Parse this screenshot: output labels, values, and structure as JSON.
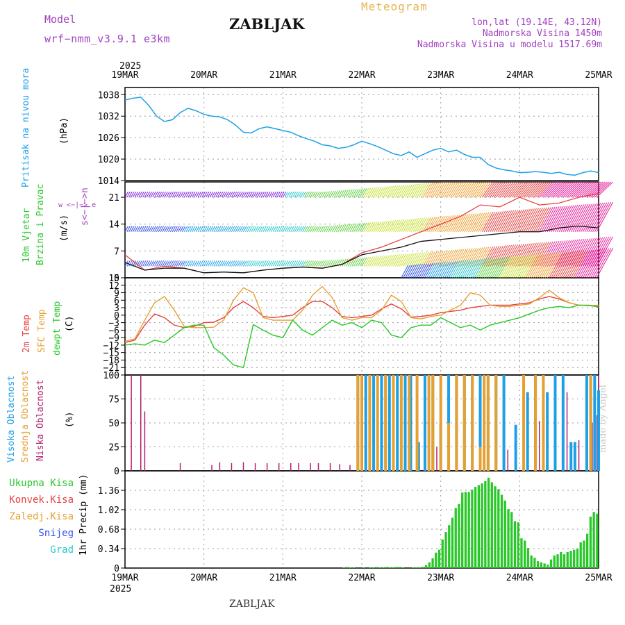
{
  "header": {
    "model_label": "Model",
    "model_name": "wrf−nmm_v3.9.1  e3km",
    "station": "ZABLJAK",
    "product": "Meteogram",
    "coords": "lon,lat (19.14E, 43.12N)",
    "altitude": "Nadmorska Visina 1450m",
    "model_altitude": "Nadmorska Visina u modelu 1517.69m"
  },
  "footer": {
    "station": "ZABLJAK",
    "credit": "made by Angel"
  },
  "colors": {
    "pressure": "#1ea0e6",
    "temp2m": "#e64040",
    "sfc_temp": "#e6a030",
    "dewpoint": "#28c828",
    "high_cloud": "#1ea0e6",
    "mid_cloud": "#e6a030",
    "low_cloud": "#b0206e",
    "precip": "#28c828",
    "purple": "#a040c0"
  },
  "chart_data": [
    {
      "id": "pressure",
      "type": "line",
      "ylabel": "(hPa)",
      "side_label": "Pritisak na nivou mora",
      "ylim": [
        1014,
        1040
      ],
      "yticks": [
        1014,
        1020,
        1026,
        1032,
        1038
      ],
      "x_days": [
        0,
        0.1,
        0.2,
        0.3,
        0.4,
        0.5,
        0.6,
        0.7,
        0.8,
        0.9,
        1.0,
        1.1,
        1.2,
        1.3,
        1.4,
        1.5,
        1.6,
        1.7,
        1.8,
        1.9,
        2.0,
        2.1,
        2.2,
        2.3,
        2.4,
        2.5,
        2.6,
        2.7,
        2.8,
        2.9,
        3.0,
        3.1,
        3.2,
        3.3,
        3.4,
        3.5,
        3.6,
        3.7,
        3.8,
        3.9,
        4.0,
        4.1,
        4.2,
        4.3,
        4.4,
        4.5,
        4.6,
        4.7,
        4.8,
        4.9,
        5.0,
        5.1,
        5.2,
        5.3,
        5.4,
        5.5,
        5.6,
        5.7,
        5.8,
        5.9,
        6.0
      ],
      "values": [
        1036.5,
        1037,
        1037.3,
        1035,
        1032,
        1030.5,
        1031,
        1033,
        1034.2,
        1033.5,
        1032.5,
        1032,
        1031.8,
        1031,
        1029.5,
        1027.5,
        1027.3,
        1028.5,
        1029,
        1028.5,
        1028,
        1027.5,
        1026.5,
        1025.7,
        1025,
        1024,
        1023.7,
        1023,
        1023.3,
        1024,
        1025,
        1024.3,
        1023.5,
        1022.5,
        1021.5,
        1021,
        1022,
        1020.5,
        1021.5,
        1022.5,
        1023,
        1022,
        1022.5,
        1021.3,
        1020.5,
        1020.5,
        1018.5,
        1017.5,
        1017,
        1016.7,
        1016.2,
        1016.3,
        1016.5,
        1016.3,
        1016,
        1016.3,
        1015.7,
        1015.5,
        1016.2,
        1016.7,
        1016.2
      ]
    },
    {
      "id": "wind",
      "type": "line",
      "ylabel": "(m/s)",
      "side_label_1": "10m Vjetar",
      "side_label_2": "Brzina i Pravac",
      "legend_compass": "w <−|−> e",
      "legend_ns": "s<−|−>n",
      "ylim": [
        0,
        25
      ],
      "yticks": [
        0,
        7,
        14,
        21
      ],
      "x_days": [
        0,
        0.25,
        0.5,
        0.75,
        1.0,
        1.25,
        1.5,
        1.75,
        2.0,
        2.25,
        2.5,
        2.75,
        3.0,
        3.25,
        3.5,
        3.75,
        4.0,
        4.25,
        4.5,
        4.75,
        5.0,
        5.25,
        5.5,
        5.75,
        6.0
      ],
      "series": [
        {
          "name": "10m wind speed",
          "color": "#e64040",
          "values": [
            6,
            2,
            3,
            2.5,
            1.3,
            1.5,
            1.3,
            2,
            2.5,
            2.8,
            2.5,
            3.5,
            6.5,
            8,
            10,
            12,
            14,
            16,
            19,
            18.5,
            21,
            19,
            19.5,
            21,
            22
          ]
        },
        {
          "name": "gust",
          "color": "#111111",
          "values": [
            4,
            2,
            2.5,
            2.5,
            1.3,
            1.5,
            1.3,
            2,
            2.5,
            2.8,
            2.5,
            3.5,
            6,
            7,
            8,
            9.5,
            10,
            10.5,
            11,
            11.5,
            12,
            12,
            13,
            13.5,
            13
          ]
        }
      ],
      "barb_rows": [
        {
          "level_ms": 3,
          "color_from": "#3050e6",
          "color_to": "#e61e9a",
          "start_day": 0,
          "end_day": 6
        },
        {
          "level_ms": 12,
          "color_from": "#3050e6",
          "color_to": "#e61e9a",
          "start_day": 0,
          "end_day": 6
        },
        {
          "level_ms": 21,
          "color_from": "#8020e0",
          "color_to": "#e61e9a",
          "start_day": 0,
          "end_day": 6
        },
        {
          "level_ms": 0,
          "color_from": "#60d040",
          "color_to": "#e61e9a",
          "start_day": 3.5,
          "end_day": 6
        }
      ]
    },
    {
      "id": "temperature",
      "type": "line",
      "ylabel": "(C)",
      "side_label_1": "2m Temp",
      "side_label_2": "SFC Temp",
      "side_label_3": "dewpt Temp",
      "ylim": [
        -24,
        15
      ],
      "yticks": [
        15,
        12,
        9,
        6,
        3,
        0,
        -3,
        -6,
        -9,
        -12,
        -15,
        -18,
        -21
      ],
      "x_days": [
        0,
        0.125,
        0.25,
        0.375,
        0.5,
        0.625,
        0.75,
        0.875,
        1.0,
        1.125,
        1.25,
        1.375,
        1.5,
        1.625,
        1.75,
        1.875,
        2.0,
        2.125,
        2.25,
        2.375,
        2.5,
        2.625,
        2.75,
        2.875,
        3.0,
        3.125,
        3.25,
        3.375,
        3.5,
        3.625,
        3.75,
        3.875,
        4.0,
        4.125,
        4.25,
        4.375,
        4.5,
        4.625,
        4.75,
        4.875,
        5.0,
        5.125,
        5.25,
        5.375,
        5.5,
        5.625,
        5.75,
        5.875,
        6.0
      ],
      "series": [
        {
          "name": "2m Temp",
          "color": "#e64040",
          "values": [
            -11,
            -10,
            -4,
            0.5,
            -1,
            -4,
            -5,
            -4.5,
            -3,
            -2.8,
            -1,
            3,
            5.5,
            3,
            -0.5,
            -1,
            -0.5,
            0,
            3,
            5.5,
            5.5,
            3,
            -0.5,
            -1,
            -0.5,
            0,
            2.5,
            4.5,
            2.5,
            -0.8,
            -0.5,
            0,
            1,
            1.5,
            2,
            3,
            3.5,
            4,
            4,
            4,
            4.5,
            5,
            6.5,
            7.5,
            6.5,
            5,
            4,
            3.8,
            3.5
          ]
        },
        {
          "name": "SFC Temp",
          "color": "#e6a030",
          "values": [
            -10.5,
            -9.5,
            -2,
            5,
            7.5,
            2,
            -4.5,
            -5,
            -5,
            -4.8,
            -2,
            6,
            11,
            9,
            -1,
            -2,
            -2,
            -2,
            2,
            8,
            11.5,
            7,
            -1,
            -2,
            -1,
            -1,
            2,
            8,
            5.5,
            -1,
            -1.5,
            -0.5,
            0,
            2,
            4,
            9,
            8,
            4,
            3.5,
            3.5,
            4,
            4.5,
            7,
            10,
            7,
            5,
            4,
            3.8,
            4
          ]
        },
        {
          "name": "dewpt Temp",
          "color": "#28c828",
          "values": [
            -12,
            -11.5,
            -12,
            -10,
            -11,
            -8,
            -5,
            -4,
            -4,
            -13,
            -16,
            -20,
            -21,
            -3.8,
            -6,
            -8,
            -9,
            -2,
            -6,
            -8,
            -5,
            -2,
            -4,
            -3,
            -5,
            -2,
            -3,
            -8,
            -9,
            -5,
            -4,
            -4,
            -1,
            -3,
            -5,
            -4,
            -6,
            -4,
            -3,
            -2,
            -1,
            0.5,
            2,
            3,
            3.5,
            3,
            4,
            4,
            3.2
          ]
        }
      ]
    },
    {
      "id": "clouds",
      "type": "bar",
      "ylabel": "(%)",
      "side_label_1": "Visoka Oblacnost",
      "side_label_2": "Srednja Oblacnost",
      "side_label_3": "Niska Oblacnost",
      "ylim": [
        0,
        100
      ],
      "yticks": [
        0,
        25,
        50,
        75,
        100
      ],
      "series": [
        {
          "name": "low",
          "color": "#b0206e",
          "points": [
            [
              0.08,
              100
            ],
            [
              0.2,
              100
            ],
            [
              0.25,
              62
            ],
            [
              0.7,
              8
            ],
            [
              1.1,
              6
            ],
            [
              1.2,
              9
            ],
            [
              1.35,
              8
            ],
            [
              1.5,
              9
            ],
            [
              1.65,
              8
            ],
            [
              1.8,
              8
            ],
            [
              1.95,
              8
            ],
            [
              2.1,
              8
            ],
            [
              2.2,
              8
            ],
            [
              2.35,
              8
            ],
            [
              2.45,
              8
            ],
            [
              2.6,
              8
            ],
            [
              2.72,
              7
            ],
            [
              2.85,
              6
            ],
            [
              3.0,
              10
            ],
            [
              3.4,
              7
            ],
            [
              3.95,
              25
            ],
            [
              4.7,
              3
            ],
            [
              4.85,
              22
            ],
            [
              5.1,
              10
            ],
            [
              5.25,
              52
            ],
            [
              5.35,
              65
            ],
            [
              5.6,
              82
            ],
            [
              5.75,
              32
            ],
            [
              5.85,
              33
            ],
            [
              5.92,
              50
            ],
            [
              5.98,
              58
            ],
            [
              6.0,
              100
            ]
          ]
        },
        {
          "name": "high",
          "color": "#1ea0e6",
          "points": [
            [
              2.95,
              100
            ],
            [
              3.05,
              100
            ],
            [
              3.15,
              100
            ],
            [
              3.25,
              100
            ],
            [
              3.35,
              100
            ],
            [
              3.45,
              100
            ],
            [
              3.55,
              100
            ],
            [
              3.62,
              100
            ],
            [
              3.72,
              30
            ],
            [
              3.8,
              100
            ],
            [
              3.9,
              100
            ],
            [
              4.0,
              48
            ],
            [
              4.1,
              100
            ],
            [
              4.2,
              100
            ],
            [
              4.3,
              100
            ],
            [
              4.4,
              100
            ],
            [
              4.5,
              100
            ],
            [
              4.6,
              100
            ],
            [
              4.7,
              100
            ],
            [
              4.8,
              100
            ],
            [
              4.95,
              48
            ],
            [
              5.1,
              82
            ],
            [
              5.2,
              100
            ],
            [
              5.35,
              82
            ],
            [
              5.45,
              100
            ],
            [
              5.55,
              100
            ],
            [
              5.65,
              30
            ],
            [
              5.7,
              30
            ],
            [
              5.85,
              100
            ],
            [
              5.9,
              100
            ],
            [
              5.95,
              100
            ],
            [
              6.0,
              84
            ]
          ]
        },
        {
          "name": "mid",
          "color": "#e6a030",
          "points": [
            [
              2.95,
              100
            ],
            [
              3.0,
              100
            ],
            [
              3.1,
              100
            ],
            [
              3.2,
              100
            ],
            [
              3.3,
              100
            ],
            [
              3.4,
              100
            ],
            [
              3.5,
              100
            ],
            [
              3.6,
              100
            ],
            [
              3.7,
              100
            ],
            [
              3.85,
              100
            ],
            [
              3.9,
              100
            ],
            [
              4.0,
              100
            ],
            [
              4.1,
              50
            ],
            [
              4.2,
              100
            ],
            [
              4.3,
              100
            ],
            [
              4.4,
              100
            ],
            [
              4.5,
              25
            ],
            [
              4.55,
              100
            ],
            [
              4.6,
              100
            ],
            [
              4.7,
              100
            ],
            [
              5.05,
              100
            ],
            [
              5.2,
              100
            ],
            [
              5.3,
              100
            ],
            [
              5.9,
              100
            ]
          ]
        }
      ]
    },
    {
      "id": "precip",
      "type": "bar",
      "ylabel": "1hr Precip (mm)",
      "legend": [
        "Ukupna Kisa",
        "Konvek.Kisa",
        "Zaledj.Kisa",
        "Snijeg",
        "Grad"
      ],
      "legend_colors": [
        "#28c828",
        "#e64040",
        "#e6a030",
        "#3050e6",
        "#28c8c8"
      ],
      "ylim": [
        0,
        1.7
      ],
      "yticks": [
        0,
        0.34,
        0.68,
        1.02,
        1.36
      ],
      "x_hours": [
        67,
        68,
        69,
        70,
        71,
        72,
        73,
        74,
        75,
        76,
        77,
        78,
        79,
        80,
        81,
        82,
        83,
        84,
        85,
        86,
        87,
        88,
        89,
        90,
        91,
        92,
        93,
        94,
        95,
        96,
        97,
        98,
        99,
        100,
        101,
        102,
        103,
        104,
        105,
        106,
        107,
        108,
        109,
        110,
        111,
        112,
        113,
        114,
        115,
        116,
        117,
        118,
        119,
        120,
        121,
        122,
        123,
        124,
        125,
        126,
        127,
        128,
        129,
        130,
        131,
        132,
        133,
        134,
        135,
        136,
        137,
        138,
        139,
        140,
        141,
        142,
        143,
        144
      ],
      "values": [
        0.01,
        0.02,
        0.01,
        0.01,
        0,
        0,
        0.01,
        0,
        0.01,
        0.01,
        0.02,
        0.01,
        0.01,
        0.02,
        0.01,
        0.01,
        0.02,
        0.02,
        0.01,
        0,
        0,
        0.01,
        0.01,
        0.01,
        0.02,
        0.05,
        0.1,
        0.17,
        0.27,
        0.32,
        0.5,
        0.63,
        0.75,
        0.88,
        1.05,
        1.12,
        1.32,
        1.33,
        1.33,
        1.37,
        1.42,
        1.45,
        1.48,
        1.52,
        1.58,
        1.5,
        1.43,
        1.38,
        1.28,
        1.18,
        1.03,
        0.98,
        0.82,
        0.8,
        0.52,
        0.48,
        0.35,
        0.22,
        0.18,
        0.12,
        0.1,
        0.08,
        0.06,
        0.15,
        0.22,
        0.24,
        0.28,
        0.24,
        0.28,
        0.3,
        0.32,
        0.34,
        0.45,
        0.48,
        0.6,
        0.9,
        0.98,
        0.95
      ]
    }
  ],
  "x_axis": {
    "year": "2025",
    "dates": [
      "19MAR",
      "20MAR",
      "21MAR",
      "22MAR",
      "23MAR",
      "24MAR",
      "25MAR"
    ]
  }
}
